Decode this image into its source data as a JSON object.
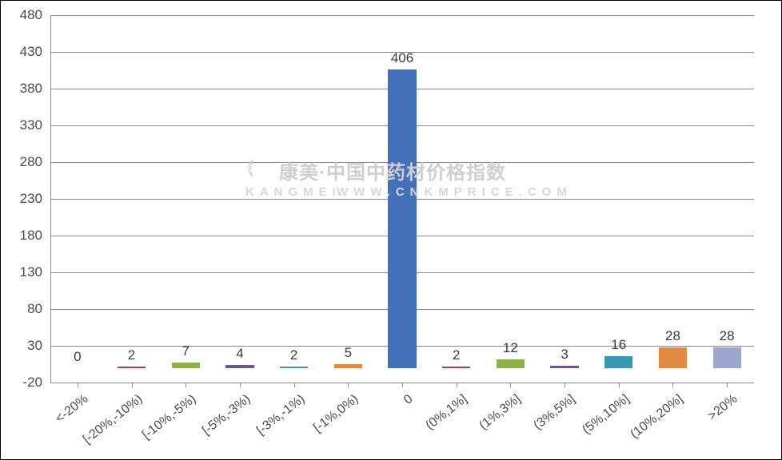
{
  "chart": {
    "type": "bar",
    "background_color": "#ffffff",
    "grid_color": "#888888",
    "axis_color": "#888888",
    "ylim": [
      -20,
      480
    ],
    "yticks": [
      -20,
      30,
      80,
      130,
      180,
      230,
      280,
      330,
      380,
      430,
      480
    ],
    "label_fontsize": 17,
    "label_color": "#4a4a4a",
    "value_label_fontsize": 17,
    "value_label_color": "#3a3a3a",
    "x_label_rotation_deg": -38,
    "bar_width_ratio": 0.52,
    "categories": [
      "<-20%",
      "[-20%,-10%)",
      "[-10%,-5%)",
      "[-5%,-3%)",
      "[-3%,-1%)",
      "[-1%,0%)",
      "0",
      "(0%,1%]",
      "(1%,3%]",
      "(3%,5%]",
      "(5%,10%]",
      "(10%,20%]",
      ">20%"
    ],
    "values": [
      0,
      2,
      7,
      4,
      2,
      5,
      406,
      2,
      12,
      3,
      16,
      28,
      28
    ],
    "bar_colors": [
      "#4371b9",
      "#b83e3d",
      "#8cb14a",
      "#6b5596",
      "#3a99b2",
      "#e08b41",
      "#4371b9",
      "#b83e3d",
      "#8cb14a",
      "#6b5596",
      "#3a99b2",
      "#e08b41",
      "#9aa8cf"
    ],
    "watermark": {
      "logo_glyph": "⦅",
      "cn_text": "康美·中国中药材价格指数",
      "en_brand": "KANGMEI",
      "en_url": "WWW.CNKMPRICE.COM"
    }
  }
}
